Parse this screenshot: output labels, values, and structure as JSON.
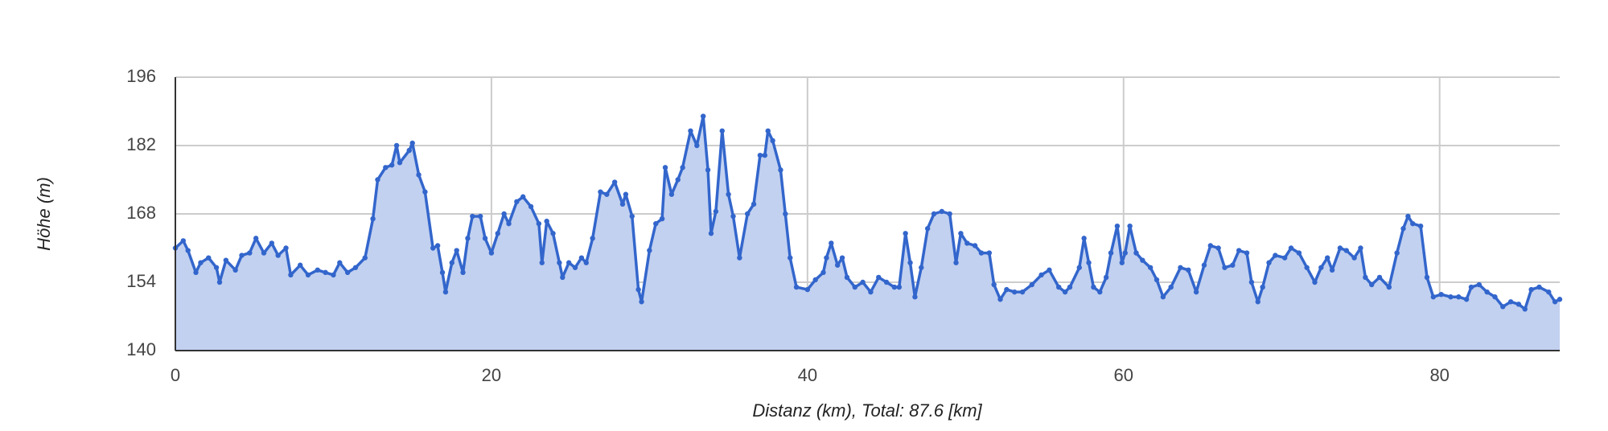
{
  "chart_data": {
    "type": "area",
    "x_label": "Distanz (km), Total: 87.6 [km]",
    "y_label": "Höhe (m)",
    "color": "#3366cc",
    "fill": "#c2d1f0",
    "grid": true,
    "xlim": [
      0,
      87.6
    ],
    "xticks": [
      0,
      20,
      40,
      60,
      80
    ],
    "ylim": [
      140,
      196
    ],
    "yticks": [
      140,
      154,
      168,
      182,
      196
    ],
    "x": [
      0,
      0.5,
      0.8,
      1.3,
      1.6,
      2.1,
      2.6,
      2.8,
      3.2,
      3.8,
      4.2,
      4.7,
      5.1,
      5.6,
      6.1,
      6.5,
      7.0,
      7.3,
      7.9,
      8.4,
      9.0,
      9.5,
      10.0,
      10.4,
      10.9,
      11.4,
      12.0,
      12.5,
      12.8,
      13.3,
      13.7,
      14.0,
      14.2,
      14.8,
      15.0,
      15.4,
      15.8,
      16.3,
      16.6,
      16.9,
      17.1,
      17.5,
      17.8,
      18.2,
      18.5,
      18.8,
      19.3,
      19.6,
      20.0,
      20.4,
      20.8,
      21.1,
      21.6,
      22.0,
      22.5,
      23.0,
      23.2,
      23.5,
      23.9,
      24.3,
      24.5,
      24.9,
      25.3,
      25.7,
      26.0,
      26.4,
      26.9,
      27.3,
      27.8,
      28.3,
      28.5,
      28.9,
      29.3,
      29.5,
      30.0,
      30.4,
      30.8,
      31.0,
      31.4,
      31.8,
      32.1,
      32.6,
      33.0,
      33.4,
      33.7,
      33.9,
      34.2,
      34.6,
      35.0,
      35.3,
      35.7,
      36.2,
      36.6,
      37.0,
      37.3,
      37.5,
      37.8,
      38.3,
      38.6,
      38.9,
      39.3,
      40.0,
      40.5,
      41.0,
      41.2,
      41.5,
      41.9,
      42.2,
      42.5,
      43.0,
      43.5,
      44.0,
      44.5,
      45.0,
      45.5,
      45.8,
      46.2,
      46.5,
      46.8,
      47.2,
      47.6,
      48.0,
      48.5,
      49.0,
      49.4,
      49.7,
      50.1,
      50.6,
      51.0,
      51.5,
      51.8,
      52.2,
      52.6,
      53.1,
      53.6,
      54.2,
      54.8,
      55.3,
      55.9,
      56.3,
      56.6,
      57.2,
      57.5,
      57.8,
      58.1,
      58.5,
      58.9,
      59.2,
      59.6,
      59.9,
      60.1,
      60.4,
      60.8,
      61.2,
      61.7,
      62.1,
      62.5,
      63.0,
      63.6,
      64.1,
      64.6,
      65.1,
      65.5,
      66.0,
      66.4,
      66.9,
      67.3,
      67.8,
      68.1,
      68.5,
      68.8,
      69.2,
      69.6,
      70.2,
      70.6,
      71.1,
      71.6,
      72.1,
      72.5,
      72.9,
      73.2,
      73.7,
      74.1,
      74.6,
      75.0,
      75.3,
      75.7,
      76.2,
      76.8,
      77.3,
      77.7,
      78.0,
      78.3,
      78.8,
      79.2,
      79.6,
      80.1,
      80.7,
      81.2,
      81.7,
      82.0,
      82.5,
      83.0,
      83.5,
      84.0,
      84.5,
      85.0,
      85.4,
      85.8,
      86.3,
      86.9,
      87.3,
      87.6
    ],
    "values": [
      161,
      162.5,
      160.5,
      156,
      158,
      159,
      157,
      154,
      158.5,
      156.5,
      159.5,
      160,
      163,
      160,
      162,
      159.5,
      161,
      155.5,
      157.5,
      155.5,
      156.5,
      156,
      155.5,
      158,
      156,
      157,
      159,
      167,
      175,
      177.5,
      178,
      182,
      178.5,
      181,
      182.5,
      176,
      172.5,
      161,
      161.5,
      156,
      152,
      158,
      160.5,
      156,
      163,
      167.5,
      167.5,
      163,
      160,
      164,
      168,
      166,
      170.5,
      171.5,
      169.5,
      166,
      158,
      166.5,
      164,
      158,
      155,
      158,
      157,
      159,
      158,
      163,
      172.5,
      172,
      174.5,
      170,
      172,
      167.5,
      152.5,
      150,
      160.5,
      166,
      167,
      177.5,
      172,
      175,
      177.5,
      185,
      182,
      188,
      177,
      164,
      168.5,
      185,
      172,
      167.5,
      159,
      168,
      170,
      180,
      180,
      185,
      183,
      177,
      168,
      159,
      153,
      152.5,
      154.5,
      156,
      159,
      162,
      157.5,
      159,
      155,
      153,
      154,
      152,
      155,
      154,
      153,
      153,
      164,
      158,
      151,
      157,
      165,
      168,
      168.5,
      168,
      158,
      164,
      162,
      161.5,
      160,
      160,
      153.5,
      150.5,
      152.5,
      152,
      152,
      153.5,
      155.5,
      156.5,
      153,
      152,
      153,
      157,
      163,
      158,
      153,
      152,
      155,
      160,
      165.5,
      158,
      160,
      165.5,
      160,
      158.5,
      157,
      154.5,
      151,
      153,
      157,
      156.5,
      152,
      157.5,
      161.5,
      161,
      157,
      157.5,
      160.5,
      160,
      154,
      150,
      153,
      158,
      159.5,
      159,
      161,
      160,
      157,
      154,
      157,
      159,
      156.5,
      161,
      160.5,
      159,
      161,
      155,
      153.5,
      155,
      153,
      160,
      165,
      167.5,
      166,
      165.5,
      155,
      151,
      151.5,
      151,
      151,
      150.5,
      153,
      153.5,
      152,
      151,
      149,
      150,
      149.5,
      148.5,
      152.5,
      153,
      152,
      150,
      150.5
    ]
  }
}
